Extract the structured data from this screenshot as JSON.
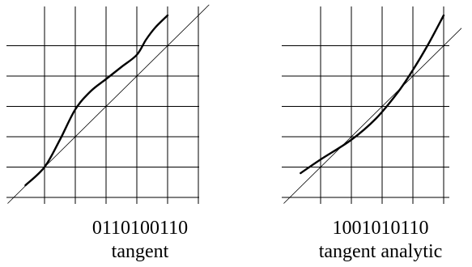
{
  "panels": [
    {
      "code": "0110100110",
      "label": "tangent",
      "curve": [
        [
          0.38,
          0.4
        ],
        [
          1.0,
          1.0
        ],
        [
          1.5,
          1.9
        ],
        [
          2.0,
          2.9
        ],
        [
          2.5,
          3.5
        ],
        [
          3.0,
          3.9
        ],
        [
          3.5,
          4.3
        ],
        [
          4.0,
          4.7
        ],
        [
          4.3,
          5.2
        ],
        [
          4.6,
          5.6
        ],
        [
          5.0,
          6.0
        ]
      ]
    },
    {
      "code": "1001010110",
      "label": "tangent analytic",
      "curve": [
        [
          0.35,
          0.8
        ],
        [
          1.0,
          1.25
        ],
        [
          2.0,
          1.9
        ],
        [
          2.8,
          2.6
        ],
        [
          3.5,
          3.45
        ],
        [
          4.0,
          4.2
        ],
        [
          4.5,
          5.05
        ],
        [
          5.0,
          6.0
        ]
      ]
    }
  ]
}
